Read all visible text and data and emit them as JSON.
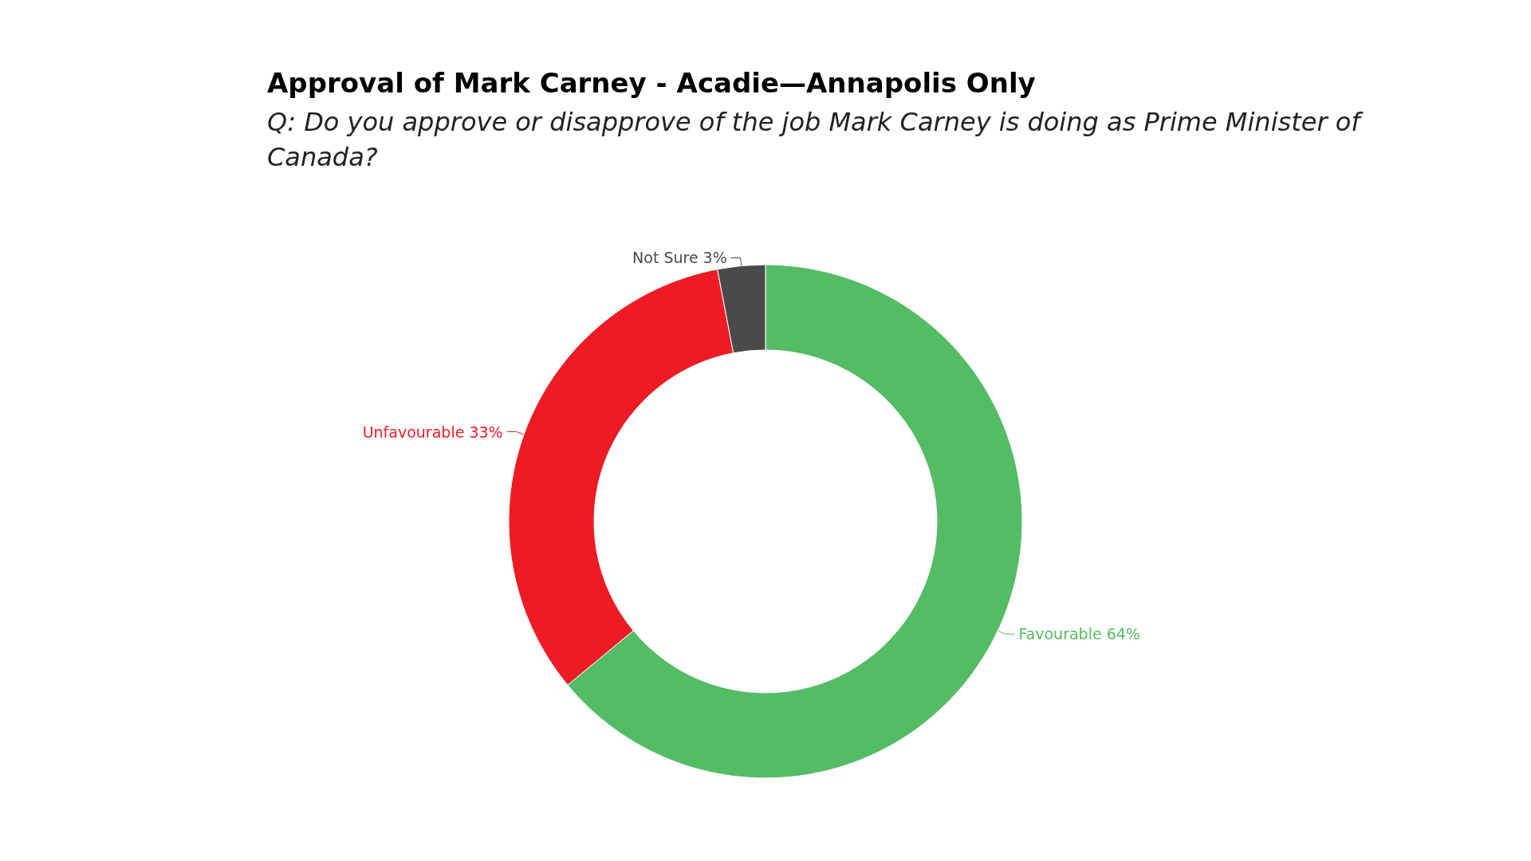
{
  "chart_data": {
    "type": "donut",
    "title": "Approval of Mark Carney - Acadie—Annapolis Only",
    "subtitle": "Q: Do you approve or disapprove of the job Mark Carney is doing as Prime Minister of Canada?",
    "categories": [
      "Favourable",
      "Unfavourable",
      "Not Sure"
    ],
    "values": [
      64,
      33,
      3
    ],
    "value_labels": [
      "64%",
      "33%",
      "3%"
    ],
    "colors": [
      "#54bc64",
      "#ed1c24",
      "#4a4a4a"
    ],
    "legend": false
  }
}
